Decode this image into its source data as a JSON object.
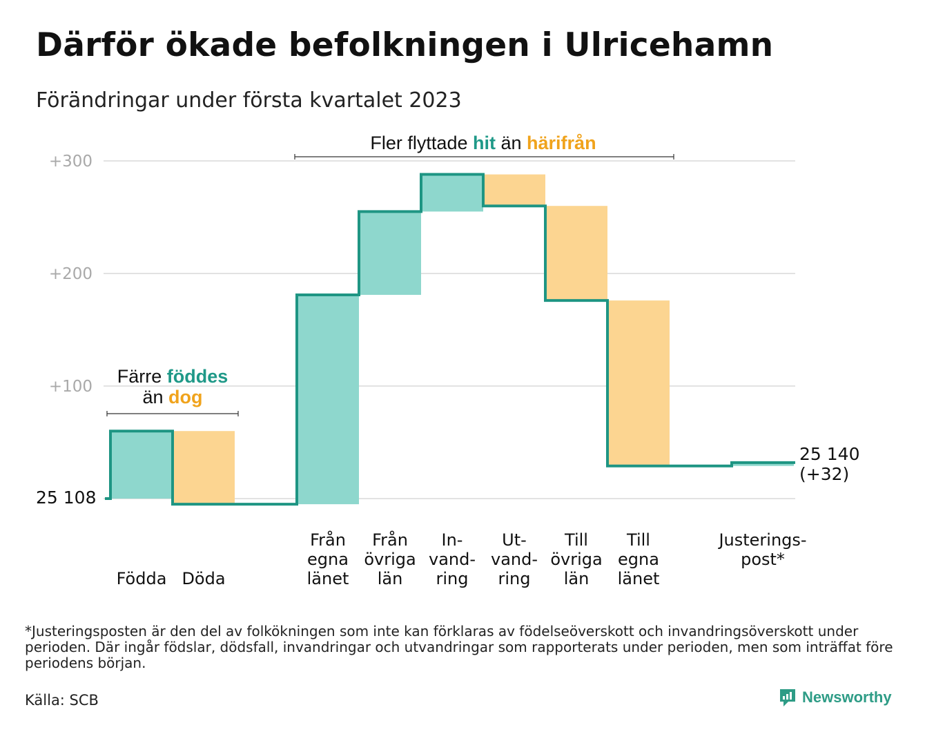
{
  "title": "Därför ökade befolkningen i Ulricehamn",
  "subtitle": "Förändringar under första kvartalet 2023",
  "colors": {
    "increase": "#8ed7cd",
    "decrease": "#fcd591",
    "line": "#1e9583",
    "grid": "#e2e2e2",
    "tick": "#a9a9a9",
    "accent_teal": "#1f9988",
    "accent_orange": "#f0a31c"
  },
  "annotations": {
    "births_deaths": {
      "line1_pre": "Färre ",
      "line1_hl": "föddes",
      "line2_pre": "än ",
      "line2_hl": "dog"
    },
    "migration": {
      "pre": "Fler flyttade ",
      "hl1": "hit",
      "mid": " än ",
      "hl2": "härifrån"
    }
  },
  "start_label": "25 108",
  "end_label_line1": "25 140",
  "end_label_line2": "(+32)",
  "chart_data": {
    "type": "waterfall",
    "start_value": 25108,
    "end_value": 25140,
    "ylim": [
      -10,
      300
    ],
    "yticks": [
      {
        "value": 300,
        "label": "+300"
      },
      {
        "value": 200,
        "label": "+200"
      },
      {
        "value": 100,
        "label": "+100"
      }
    ],
    "grid": true,
    "steps": [
      {
        "label_lines": [
          "",
          "",
          "Födda"
        ],
        "change": 60,
        "kind": "increase"
      },
      {
        "label_lines": [
          "",
          "",
          "Döda"
        ],
        "change": -65,
        "kind": "decrease"
      },
      {
        "label_lines": [],
        "change": 0,
        "kind": "none"
      },
      {
        "label_lines": [
          "Från",
          "egna",
          "länet"
        ],
        "change": 186,
        "kind": "increase"
      },
      {
        "label_lines": [
          "Från",
          "övriga",
          "län"
        ],
        "change": 74,
        "kind": "increase"
      },
      {
        "label_lines": [
          "In-",
          "vand-",
          "ring"
        ],
        "change": 33,
        "kind": "increase"
      },
      {
        "label_lines": [
          "Ut-",
          "vand-",
          "ring"
        ],
        "change": -28,
        "kind": "decrease"
      },
      {
        "label_lines": [
          "Till",
          "övriga",
          "län"
        ],
        "change": -84,
        "kind": "decrease"
      },
      {
        "label_lines": [
          "Till",
          "egna",
          "länet"
        ],
        "change": -147,
        "kind": "decrease"
      },
      {
        "label_lines": [],
        "change": 0,
        "kind": "none"
      },
      {
        "label_lines": [
          "Justerings-",
          "post*"
        ],
        "change": 3,
        "kind": "increase"
      }
    ]
  },
  "footnote": "*Justeringsposten är den del av folkökningen som inte kan förklaras av födelseöverskott och invandringsöverskott under perioden. Där ingår födslar, dödsfall, invandringar och utvandringar som rapporterats under perioden, men som inträffat före periodens början.",
  "source": "Källa: SCB",
  "brand": {
    "name": "Newsworthy",
    "icon": "newsworthy-logo-icon"
  }
}
